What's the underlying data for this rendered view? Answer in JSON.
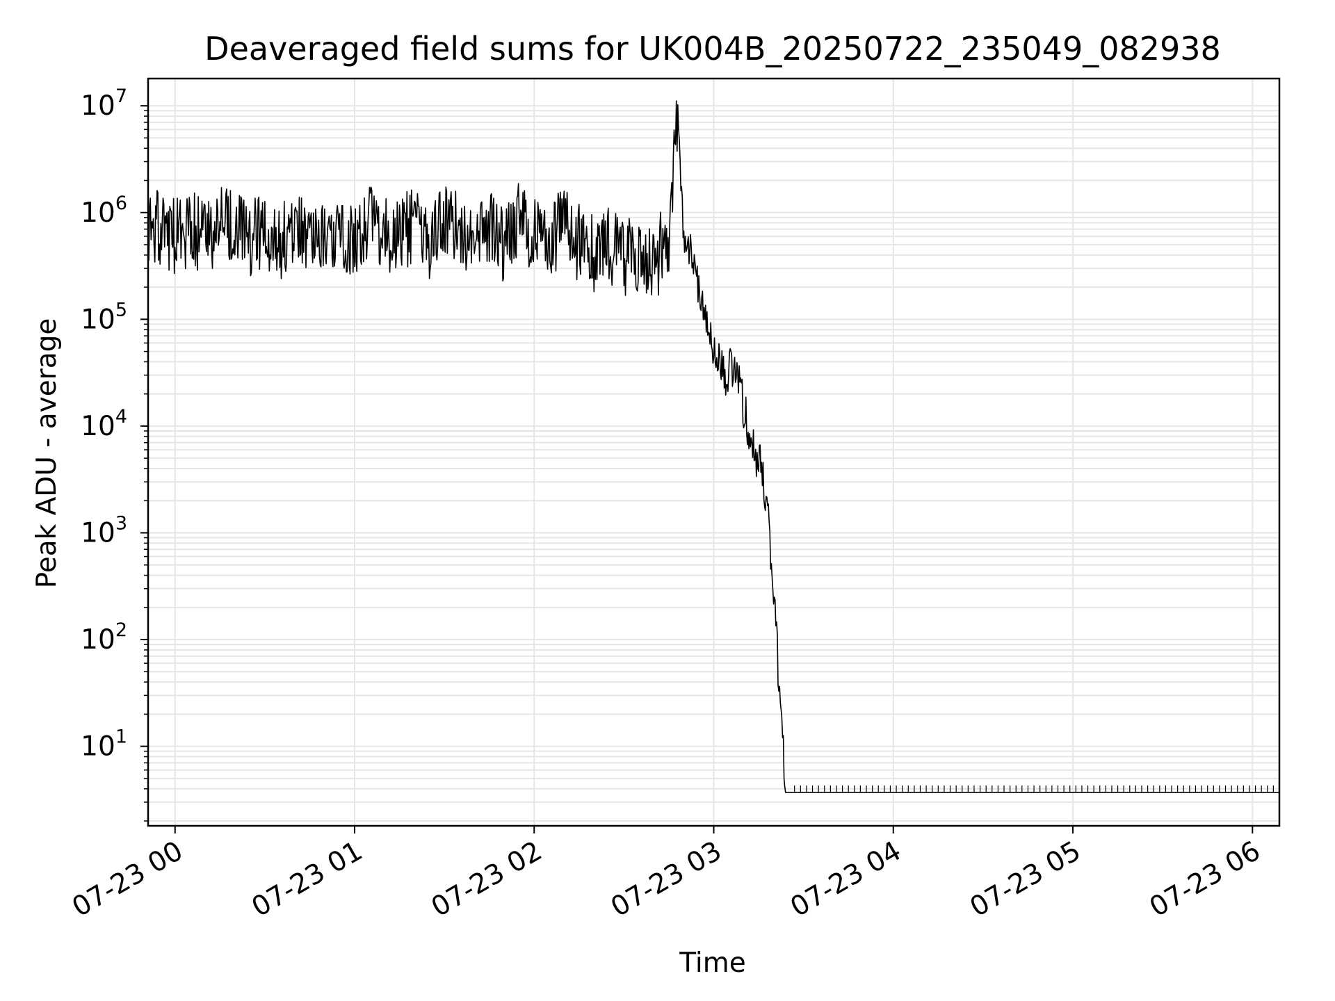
{
  "chart_data": {
    "type": "line",
    "title": "Deaveraged field sums for UK004B_20250722_235049_082938",
    "xlabel": "Time",
    "ylabel": "Peak ADU - average",
    "yscale": "log",
    "ylim": [
      1.8,
      18000000
    ],
    "xlim": [
      "07-22 23:51",
      "07-23 06:09"
    ],
    "grid": true,
    "series_color": "#000000",
    "grid_color": "#e6e6e6",
    "x_ticks": [
      {
        "value": "07-23 00:00",
        "label": "07-23 00"
      },
      {
        "value": "07-23 01:00",
        "label": "07-23 01"
      },
      {
        "value": "07-23 02:00",
        "label": "07-23 02"
      },
      {
        "value": "07-23 03:00",
        "label": "07-23 03"
      },
      {
        "value": "07-23 04:00",
        "label": "07-23 04"
      },
      {
        "value": "07-23 05:00",
        "label": "07-23 05"
      },
      {
        "value": "07-23 06:00",
        "label": "07-23 06"
      }
    ],
    "y_ticks": [
      {
        "value": 10,
        "base": "10",
        "exp": "1"
      },
      {
        "value": 100,
        "base": "10",
        "exp": "2"
      },
      {
        "value": 1000,
        "base": "10",
        "exp": "3"
      },
      {
        "value": 10000,
        "base": "10",
        "exp": "4"
      },
      {
        "value": 100000,
        "base": "10",
        "exp": "5"
      },
      {
        "value": 1000000,
        "base": "10",
        "exp": "6"
      },
      {
        "value": 10000000,
        "base": "10",
        "exp": "7"
      }
    ],
    "series": [
      {
        "x": [
          "07-22 23:51",
          "07-22 23:55",
          "07-23 00:00",
          "07-23 00:05",
          "07-23 00:10",
          "07-23 00:15",
          "07-23 00:20",
          "07-23 00:25",
          "07-23 00:30",
          "07-23 00:35",
          "07-23 00:40",
          "07-23 00:45",
          "07-23 00:50",
          "07-23 00:55",
          "07-23 01:00",
          "07-23 01:05",
          "07-23 01:10",
          "07-23 01:15",
          "07-23 01:20",
          "07-23 01:25",
          "07-23 01:30",
          "07-23 01:35",
          "07-23 01:40",
          "07-23 01:45",
          "07-23 01:50",
          "07-23 01:55",
          "07-23 02:00",
          "07-23 02:05",
          "07-23 02:10",
          "07-23 02:15",
          "07-23 02:20",
          "07-23 02:25",
          "07-23 02:30",
          "07-23 02:35",
          "07-23 02:40",
          "07-23 02:45",
          "07-23 02:48",
          "07-23 02:50",
          "07-23 02:52",
          "07-23 02:55",
          "07-23 02:58",
          "07-23 03:00",
          "07-23 03:02",
          "07-23 03:04",
          "07-23 03:06",
          "07-23 03:08",
          "07-23 03:10",
          "07-23 03:12",
          "07-23 03:14",
          "07-23 03:16",
          "07-23 03:18",
          "07-23 03:20",
          "07-23 03:22",
          "07-23 03:24",
          "07-23 03:26",
          "07-23 03:27",
          "07-23 03:28",
          "07-23 03:29",
          "07-23 03:30",
          "07-23 03:35",
          "07-23 04:00",
          "07-23 04:30",
          "07-23 05:00",
          "07-23 05:30",
          "07-23 06:00",
          "07-23 06:09"
        ],
        "y": [
          1000000,
          800000,
          700000,
          900000,
          600000,
          1000000,
          800000,
          700000,
          900000,
          600000,
          1000000,
          800000,
          700000,
          900000,
          600000,
          1000000,
          800000,
          700000,
          900000,
          600000,
          1000000,
          800000,
          700000,
          900000,
          600000,
          1000000,
          800000,
          700000,
          900000,
          600000,
          500000,
          600000,
          450000,
          500000,
          400000,
          700000,
          8700000,
          600000,
          450000,
          200000,
          100000,
          50000,
          40000,
          30000,
          35000,
          30000,
          15000,
          8000,
          5000,
          4000,
          1500,
          300,
          30,
          3.7,
          3.7,
          3.7,
          3.7,
          3.7,
          3.7,
          3.7,
          3.7,
          3.7,
          3.7,
          3.7,
          3.7,
          3.7
        ]
      }
    ]
  }
}
